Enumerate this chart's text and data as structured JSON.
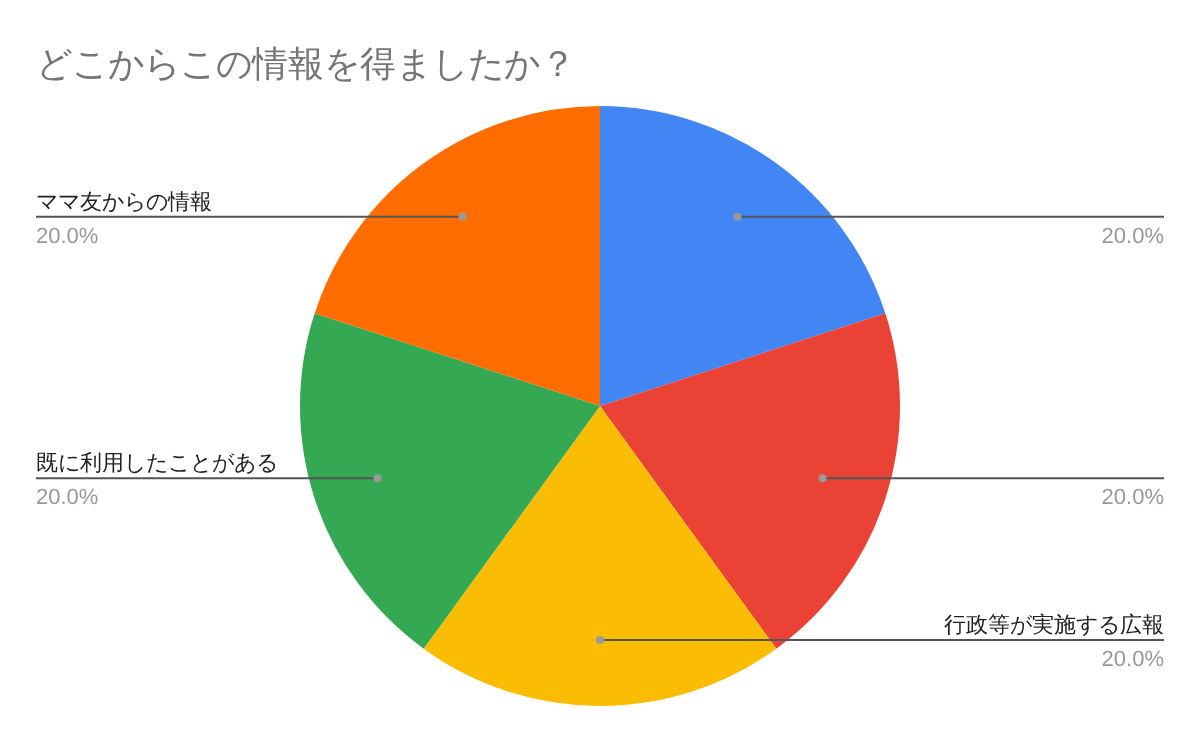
{
  "chart_data": {
    "type": "pie",
    "title": "どこからこの情報を得ましたか？",
    "categories": [
      null,
      null,
      "行政等が実施する広報",
      "既に利用したことがある",
      "ママ友からの情報"
    ],
    "values": [
      20,
      20,
      20,
      20,
      20
    ],
    "value_labels": [
      "20.0%",
      "20.0%",
      "20.0%",
      "20.0%",
      "20.0%"
    ],
    "colors": [
      "#4285f4",
      "#ea4335",
      "#fbbc04",
      "#34a853",
      "#ff6d01"
    ],
    "legend": false
  }
}
